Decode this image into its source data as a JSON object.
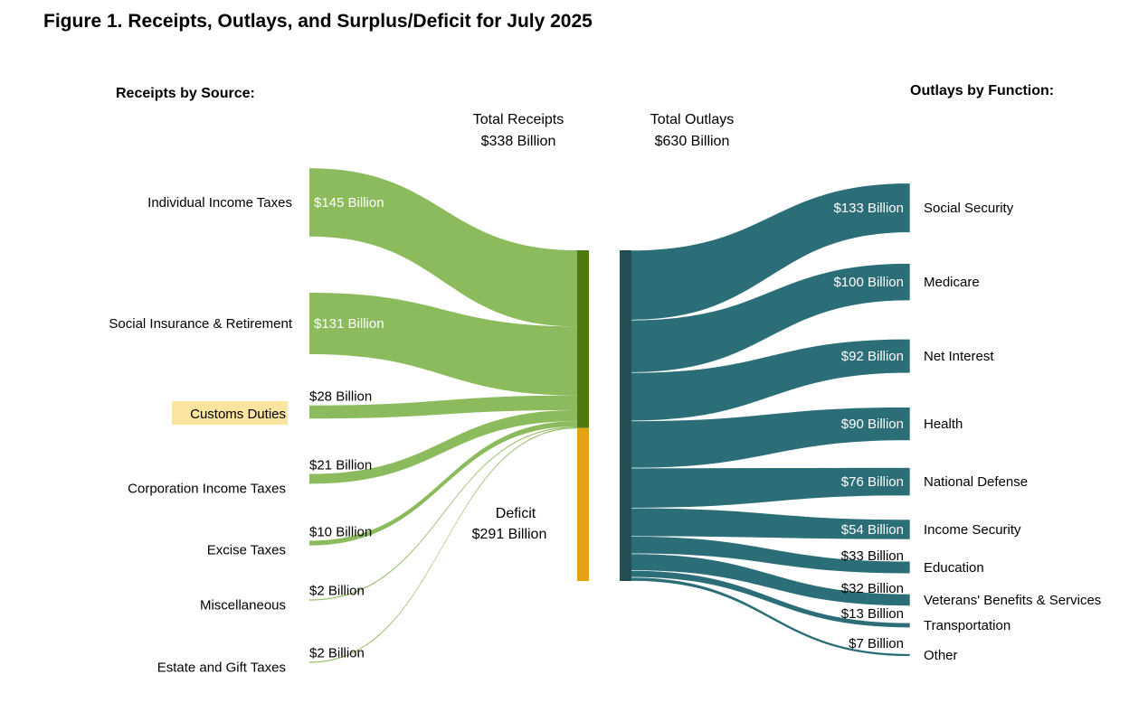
{
  "title": "Figure 1. Receipts, Outlays, and Surplus/Deficit for July 2025",
  "receipts_heading": "Receipts by Source:",
  "outlays_heading": "Outlays by Function:",
  "total_receipts": {
    "label": "Total Receipts",
    "value": "$338 Billion"
  },
  "total_outlays": {
    "label": "Total Outlays",
    "value": "$630 Billion"
  },
  "deficit": {
    "label": "Deficit",
    "value": "$291 Billion"
  },
  "colors": {
    "receipts_flow": "#8cbb5e",
    "receipts_bar": "#4f7a0d",
    "deficit_bar": "#e3a20f",
    "outlays_flow": "#2b6e78",
    "outlays_bar": "#234e54",
    "highlight": "#fbe3a0"
  },
  "highlighted_source": "Customs Duties",
  "chart_data": {
    "type": "sankey",
    "units": "Billion",
    "receipts": [
      {
        "name": "Individual Income Taxes",
        "value": 145,
        "label": "$145 Billion"
      },
      {
        "name": "Social Insurance & Retirement",
        "value": 131,
        "label": "$131 Billion"
      },
      {
        "name": "Customs Duties",
        "value": 28,
        "label": "$28 Billion"
      },
      {
        "name": "Corporation Income Taxes",
        "value": 21,
        "label": "$21 Billion"
      },
      {
        "name": "Excise Taxes",
        "value": 10,
        "label": "$10 Billion"
      },
      {
        "name": "Miscellaneous",
        "value": 2,
        "label": "$2 Billion"
      },
      {
        "name": "Estate and Gift Taxes",
        "value": 2,
        "label": "$2 Billion"
      }
    ],
    "total_receipts": 338,
    "deficit": 291,
    "total_outlays": 630,
    "outlays": [
      {
        "name": "Social Security",
        "value": 133,
        "label": "$133 Billion"
      },
      {
        "name": "Medicare",
        "value": 100,
        "label": "$100 Billion"
      },
      {
        "name": "Net Interest",
        "value": 92,
        "label": "$92 Billion"
      },
      {
        "name": "Health",
        "value": 90,
        "label": "$90 Billion"
      },
      {
        "name": "National Defense",
        "value": 76,
        "label": "$76 Billion"
      },
      {
        "name": "Income Security",
        "value": 54,
        "label": "$54 Billion"
      },
      {
        "name": "Education",
        "value": 33,
        "label": "$33 Billion"
      },
      {
        "name": "Veterans' Benefits & Services",
        "value": 32,
        "label": "$32 Billion"
      },
      {
        "name": "Transportation",
        "value": 13,
        "label": "$13 Billion"
      },
      {
        "name": "Other",
        "value": 7,
        "label": "$7 Billion"
      }
    ]
  }
}
